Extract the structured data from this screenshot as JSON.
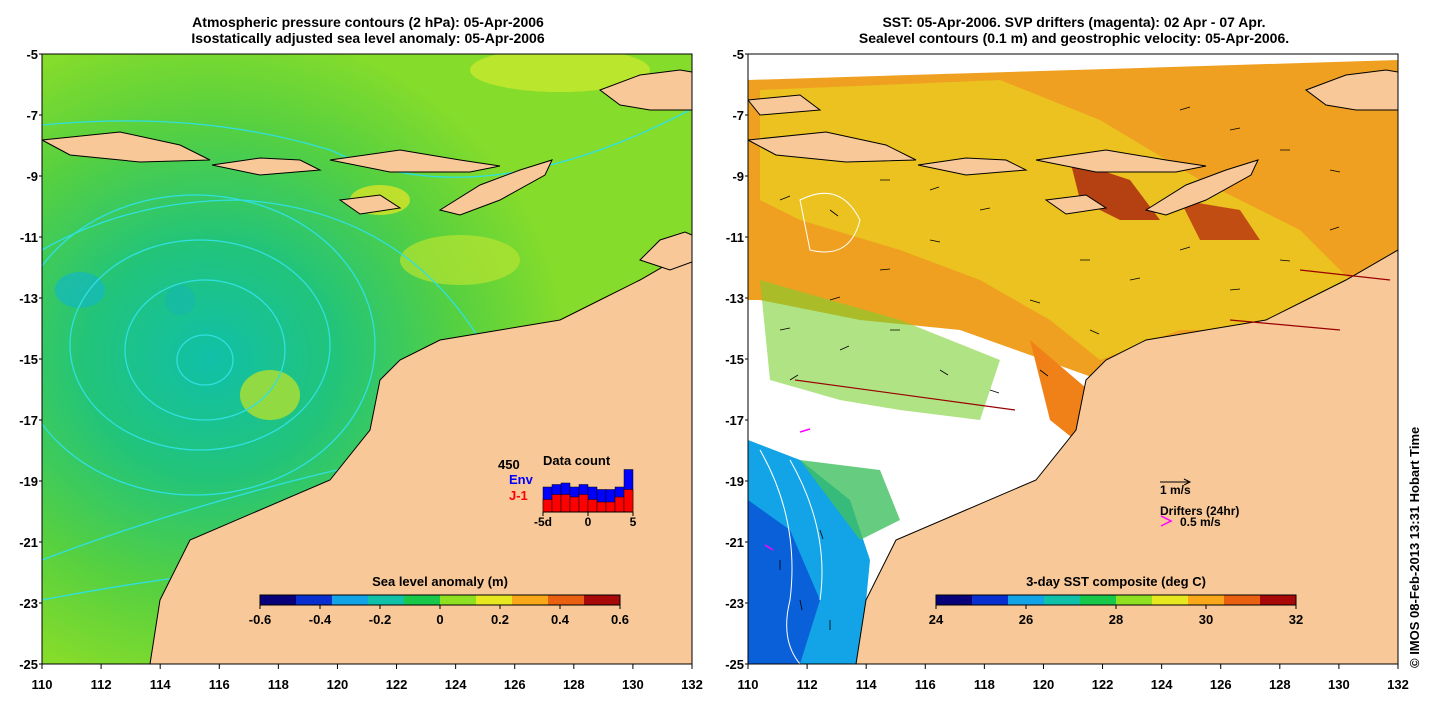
{
  "left_panel": {
    "title_line1": "Atmospheric pressure contours (2 hPa): 05-Apr-2006",
    "title_line2": "Isostatically adjusted sea level anomaly: 05-Apr-2006",
    "colorbar": {
      "label": "Sea level anomaly (m)",
      "ticks": [
        "-0.6",
        "-0.4",
        "-0.2",
        "0",
        "0.2",
        "0.4",
        "0.6"
      ],
      "colors": [
        "#08007a",
        "#0a2fd0",
        "#12a4e6",
        "#10c0a8",
        "#18c84a",
        "#8ee020",
        "#e8e820",
        "#f8a818",
        "#e86010",
        "#a80808"
      ]
    },
    "data_count": {
      "title": "Data count",
      "max_label": "450",
      "series_env": "Env",
      "series_j1": "J-1",
      "env_color": "#0000ff",
      "j1_color": "#ff0000",
      "x_ticks": [
        "-5d",
        "0",
        "5"
      ],
      "env_values": [
        0.5,
        0.55,
        0.58,
        0.5,
        0.55,
        0.5,
        0.45,
        0.45,
        0.5,
        0.85
      ],
      "j1_values": [
        0.25,
        0.35,
        0.35,
        0.3,
        0.35,
        0.25,
        0.2,
        0.2,
        0.3,
        0.45
      ]
    }
  },
  "right_panel": {
    "title_line1": "SST: 05-Apr-2006. SVP drifters (magenta): 02 Apr - 07 Apr.",
    "title_line2": "Sealevel contours (0.1 m) and geostrophic velocity: 05-Apr-2006.",
    "colorbar": {
      "label": "3-day SST composite (deg C)",
      "ticks": [
        "24",
        "26",
        "28",
        "30",
        "32"
      ],
      "colors": [
        "#08007a",
        "#0a2fd0",
        "#12a4e6",
        "#10c0a8",
        "#18c84a",
        "#8ee020",
        "#e8e820",
        "#f8a818",
        "#e86010",
        "#a80808"
      ]
    },
    "legend": {
      "velocity_label": "1 m/s",
      "drifters_label": "Drifters (24hr)",
      "drifter_speed": "0.5 m/s"
    }
  },
  "axes": {
    "lon_ticks": [
      "110",
      "112",
      "114",
      "116",
      "118",
      "120",
      "122",
      "124",
      "126",
      "128",
      "130",
      "132"
    ],
    "lat_ticks": [
      "-5",
      "-7",
      "-9",
      "-11",
      "-13",
      "-15",
      "-17",
      "-19",
      "-21",
      "-23",
      "-25"
    ],
    "lon_range": [
      110,
      132
    ],
    "lat_range": [
      -25,
      -5
    ]
  },
  "credit": "© IMOS 08-Feb-2013 13:31 Hobart Time",
  "colors": {
    "land": "#f8c898",
    "ocean_green": "#7ed82a",
    "contour_cyan": "#30e0e0"
  }
}
